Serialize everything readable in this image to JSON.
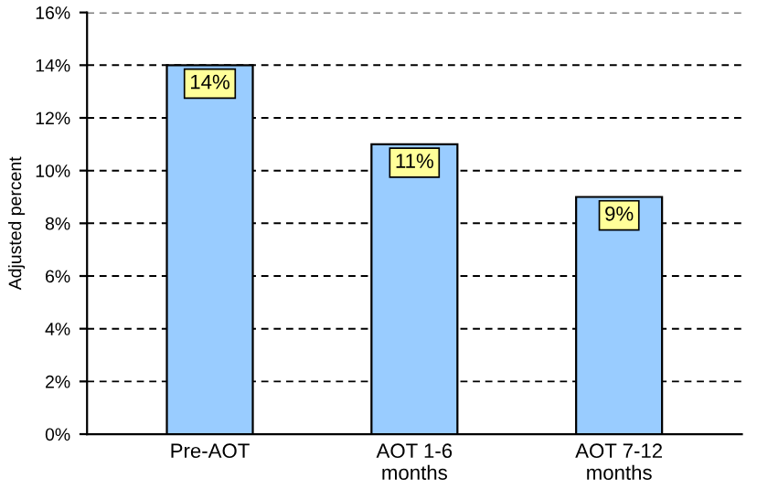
{
  "chart_data": {
    "type": "bar",
    "ylabel": "Adjusted percent",
    "categories": [
      "Pre-AOT",
      "AOT 1-6\nmonths",
      "AOT 7-12\nmonths"
    ],
    "values": [
      14,
      11,
      9
    ],
    "color": "#99ccff",
    "value_labels": [
      "14%",
      "11%",
      "9%"
    ],
    "ylim": [
      0,
      16
    ],
    "yticks": [
      {
        "value": 0,
        "label": "0%"
      },
      {
        "value": 2,
        "label": "2%"
      },
      {
        "value": 4,
        "label": "4%"
      },
      {
        "value": 6,
        "label": "6%"
      },
      {
        "value": 8,
        "label": "8%"
      },
      {
        "value": 10,
        "label": "10%"
      },
      {
        "value": 12,
        "label": "12%"
      },
      {
        "value": 14,
        "label": "14%"
      },
      {
        "value": 16,
        "label": "16%"
      }
    ],
    "grid": "y",
    "legend": false
  }
}
